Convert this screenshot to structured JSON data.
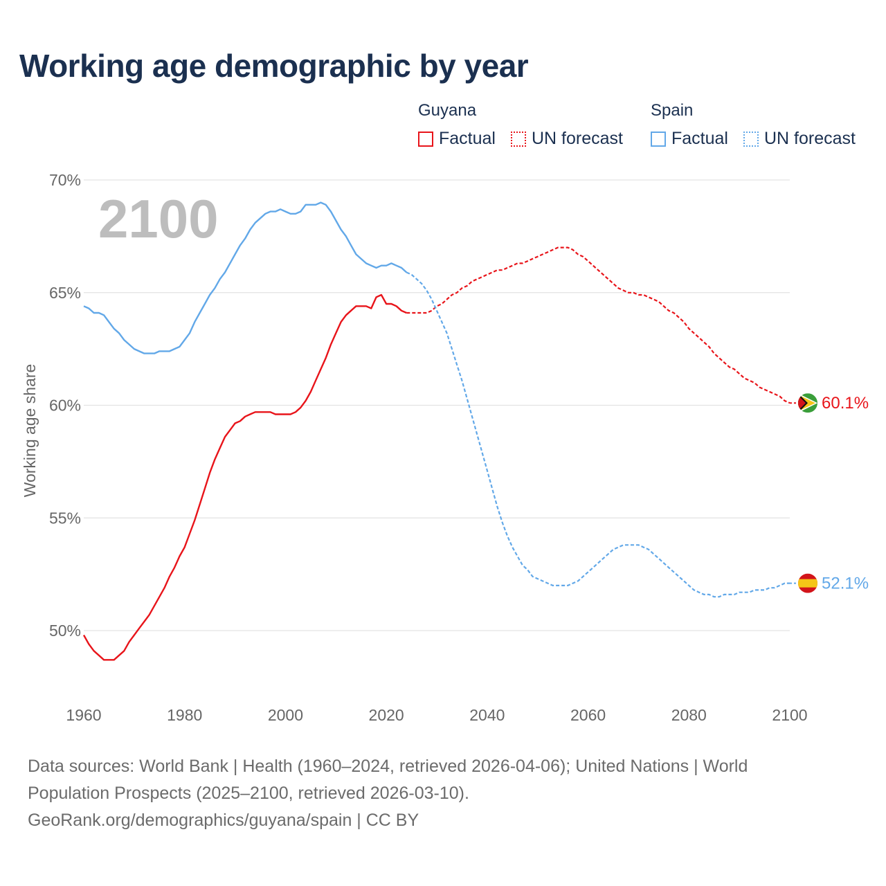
{
  "title": "Working age demographic by year",
  "legend": {
    "groups": [
      {
        "name": "Guyana",
        "color": "#e8141a",
        "factual_label": "Factual",
        "forecast_label": "UN forecast"
      },
      {
        "name": "Spain",
        "color": "#62a8e8",
        "factual_label": "Factual",
        "forecast_label": "UN forecast"
      }
    ]
  },
  "footer": {
    "line1": "Data sources: World Bank | Health (1960–2024, retrieved 2026-04-06); United Nations | World",
    "line2": "Population Prospects (2025–2100, retrieved 2026-03-10).",
    "line3": "GeoRank.org/demographics/guyana/spain | CC BY"
  },
  "chart_data": {
    "type": "line",
    "title": "Working age demographic by year",
    "year_overlay": "2100",
    "xlabel": "",
    "ylabel": "Working age share",
    "xlim": [
      1960,
      2100
    ],
    "ylim": [
      48,
      70
    ],
    "x_ticks": [
      1960,
      1980,
      2000,
      2020,
      2040,
      2060,
      2080,
      2100
    ],
    "x_tick_labels": [
      "1960",
      "1980",
      "2000",
      "2020",
      "2040",
      "2060",
      "2080",
      "2100"
    ],
    "y_ticks": [
      50,
      55,
      60,
      65,
      70
    ],
    "y_tick_labels": [
      "50%",
      "55%",
      "60%",
      "65%",
      "70%"
    ],
    "grid": true,
    "legend_position": "top-right",
    "factual_range": [
      1960,
      2024
    ],
    "forecast_range": [
      2024,
      2100
    ],
    "series": [
      {
        "name": "Guyana",
        "color": "#e8141a",
        "end_label": "60.1%",
        "points": [
          [
            1960,
            49.8
          ],
          [
            1961,
            49.4
          ],
          [
            1962,
            49.1
          ],
          [
            1963,
            48.9
          ],
          [
            1964,
            48.7
          ],
          [
            1965,
            48.7
          ],
          [
            1966,
            48.7
          ],
          [
            1967,
            48.9
          ],
          [
            1968,
            49.1
          ],
          [
            1969,
            49.5
          ],
          [
            1970,
            49.8
          ],
          [
            1971,
            50.1
          ],
          [
            1972,
            50.4
          ],
          [
            1973,
            50.7
          ],
          [
            1974,
            51.1
          ],
          [
            1975,
            51.5
          ],
          [
            1976,
            51.9
          ],
          [
            1977,
            52.4
          ],
          [
            1978,
            52.8
          ],
          [
            1979,
            53.3
          ],
          [
            1980,
            53.7
          ],
          [
            1981,
            54.3
          ],
          [
            1982,
            54.9
          ],
          [
            1983,
            55.6
          ],
          [
            1984,
            56.3
          ],
          [
            1985,
            57.0
          ],
          [
            1986,
            57.6
          ],
          [
            1987,
            58.1
          ],
          [
            1988,
            58.6
          ],
          [
            1989,
            58.9
          ],
          [
            1990,
            59.2
          ],
          [
            1991,
            59.3
          ],
          [
            1992,
            59.5
          ],
          [
            1993,
            59.6
          ],
          [
            1994,
            59.7
          ],
          [
            1995,
            59.7
          ],
          [
            1996,
            59.7
          ],
          [
            1997,
            59.7
          ],
          [
            1998,
            59.6
          ],
          [
            1999,
            59.6
          ],
          [
            2000,
            59.6
          ],
          [
            2001,
            59.6
          ],
          [
            2002,
            59.7
          ],
          [
            2003,
            59.9
          ],
          [
            2004,
            60.2
          ],
          [
            2005,
            60.6
          ],
          [
            2006,
            61.1
          ],
          [
            2007,
            61.6
          ],
          [
            2008,
            62.1
          ],
          [
            2009,
            62.7
          ],
          [
            2010,
            63.2
          ],
          [
            2011,
            63.7
          ],
          [
            2012,
            64.0
          ],
          [
            2013,
            64.2
          ],
          [
            2014,
            64.4
          ],
          [
            2015,
            64.4
          ],
          [
            2016,
            64.4
          ],
          [
            2017,
            64.3
          ],
          [
            2018,
            64.8
          ],
          [
            2019,
            64.9
          ],
          [
            2020,
            64.5
          ],
          [
            2021,
            64.5
          ],
          [
            2022,
            64.4
          ],
          [
            2023,
            64.2
          ],
          [
            2024,
            64.1
          ],
          [
            2025,
            64.1
          ],
          [
            2026,
            64.1
          ],
          [
            2027,
            64.1
          ],
          [
            2028,
            64.1
          ],
          [
            2029,
            64.2
          ],
          [
            2030,
            64.4
          ],
          [
            2031,
            64.5
          ],
          [
            2032,
            64.7
          ],
          [
            2033,
            64.9
          ],
          [
            2034,
            65.0
          ],
          [
            2035,
            65.2
          ],
          [
            2036,
            65.3
          ],
          [
            2037,
            65.5
          ],
          [
            2038,
            65.6
          ],
          [
            2039,
            65.7
          ],
          [
            2040,
            65.8
          ],
          [
            2041,
            65.9
          ],
          [
            2042,
            66.0
          ],
          [
            2043,
            66.0
          ],
          [
            2044,
            66.1
          ],
          [
            2045,
            66.2
          ],
          [
            2046,
            66.3
          ],
          [
            2047,
            66.3
          ],
          [
            2048,
            66.4
          ],
          [
            2049,
            66.5
          ],
          [
            2050,
            66.6
          ],
          [
            2051,
            66.7
          ],
          [
            2052,
            66.8
          ],
          [
            2053,
            66.9
          ],
          [
            2054,
            67.0
          ],
          [
            2055,
            67.0
          ],
          [
            2056,
            67.0
          ],
          [
            2057,
            66.9
          ],
          [
            2058,
            66.7
          ],
          [
            2059,
            66.6
          ],
          [
            2060,
            66.4
          ],
          [
            2061,
            66.2
          ],
          [
            2062,
            66.0
          ],
          [
            2063,
            65.8
          ],
          [
            2064,
            65.6
          ],
          [
            2065,
            65.4
          ],
          [
            2066,
            65.2
          ],
          [
            2067,
            65.1
          ],
          [
            2068,
            65.0
          ],
          [
            2069,
            65.0
          ],
          [
            2070,
            64.9
          ],
          [
            2071,
            64.9
          ],
          [
            2072,
            64.8
          ],
          [
            2073,
            64.7
          ],
          [
            2074,
            64.6
          ],
          [
            2075,
            64.4
          ],
          [
            2076,
            64.2
          ],
          [
            2077,
            64.1
          ],
          [
            2078,
            63.9
          ],
          [
            2079,
            63.7
          ],
          [
            2080,
            63.4
          ],
          [
            2081,
            63.2
          ],
          [
            2082,
            63.0
          ],
          [
            2083,
            62.8
          ],
          [
            2084,
            62.6
          ],
          [
            2085,
            62.3
          ],
          [
            2086,
            62.1
          ],
          [
            2087,
            61.9
          ],
          [
            2088,
            61.7
          ],
          [
            2089,
            61.6
          ],
          [
            2090,
            61.4
          ],
          [
            2091,
            61.2
          ],
          [
            2092,
            61.1
          ],
          [
            2093,
            61.0
          ],
          [
            2094,
            60.8
          ],
          [
            2095,
            60.7
          ],
          [
            2096,
            60.6
          ],
          [
            2097,
            60.5
          ],
          [
            2098,
            60.4
          ],
          [
            2099,
            60.2
          ],
          [
            2100,
            60.1
          ]
        ]
      },
      {
        "name": "Spain",
        "color": "#62a8e8",
        "end_label": "52.1%",
        "points": [
          [
            1960,
            64.4
          ],
          [
            1961,
            64.3
          ],
          [
            1962,
            64.1
          ],
          [
            1963,
            64.1
          ],
          [
            1964,
            64.0
          ],
          [
            1965,
            63.7
          ],
          [
            1966,
            63.4
          ],
          [
            1967,
            63.2
          ],
          [
            1968,
            62.9
          ],
          [
            1969,
            62.7
          ],
          [
            1970,
            62.5
          ],
          [
            1971,
            62.4
          ],
          [
            1972,
            62.3
          ],
          [
            1973,
            62.3
          ],
          [
            1974,
            62.3
          ],
          [
            1975,
            62.4
          ],
          [
            1976,
            62.4
          ],
          [
            1977,
            62.4
          ],
          [
            1978,
            62.5
          ],
          [
            1979,
            62.6
          ],
          [
            1980,
            62.9
          ],
          [
            1981,
            63.2
          ],
          [
            1982,
            63.7
          ],
          [
            1983,
            64.1
          ],
          [
            1984,
            64.5
          ],
          [
            1985,
            64.9
          ],
          [
            1986,
            65.2
          ],
          [
            1987,
            65.6
          ],
          [
            1988,
            65.9
          ],
          [
            1989,
            66.3
          ],
          [
            1990,
            66.7
          ],
          [
            1991,
            67.1
          ],
          [
            1992,
            67.4
          ],
          [
            1993,
            67.8
          ],
          [
            1994,
            68.1
          ],
          [
            1995,
            68.3
          ],
          [
            1996,
            68.5
          ],
          [
            1997,
            68.6
          ],
          [
            1998,
            68.6
          ],
          [
            1999,
            68.7
          ],
          [
            2000,
            68.6
          ],
          [
            2001,
            68.5
          ],
          [
            2002,
            68.5
          ],
          [
            2003,
            68.6
          ],
          [
            2004,
            68.9
          ],
          [
            2005,
            68.9
          ],
          [
            2006,
            68.9
          ],
          [
            2007,
            69.0
          ],
          [
            2008,
            68.9
          ],
          [
            2009,
            68.6
          ],
          [
            2010,
            68.2
          ],
          [
            2011,
            67.8
          ],
          [
            2012,
            67.5
          ],
          [
            2013,
            67.1
          ],
          [
            2014,
            66.7
          ],
          [
            2015,
            66.5
          ],
          [
            2016,
            66.3
          ],
          [
            2017,
            66.2
          ],
          [
            2018,
            66.1
          ],
          [
            2019,
            66.2
          ],
          [
            2020,
            66.2
          ],
          [
            2021,
            66.3
          ],
          [
            2022,
            66.2
          ],
          [
            2023,
            66.1
          ],
          [
            2024,
            65.9
          ],
          [
            2025,
            65.8
          ],
          [
            2026,
            65.6
          ],
          [
            2027,
            65.4
          ],
          [
            2028,
            65.1
          ],
          [
            2029,
            64.7
          ],
          [
            2030,
            64.2
          ],
          [
            2031,
            63.7
          ],
          [
            2032,
            63.2
          ],
          [
            2033,
            62.5
          ],
          [
            2034,
            61.8
          ],
          [
            2035,
            61.1
          ],
          [
            2036,
            60.3
          ],
          [
            2037,
            59.5
          ],
          [
            2038,
            58.7
          ],
          [
            2039,
            57.9
          ],
          [
            2040,
            57.1
          ],
          [
            2041,
            56.3
          ],
          [
            2042,
            55.5
          ],
          [
            2043,
            54.8
          ],
          [
            2044,
            54.2
          ],
          [
            2045,
            53.7
          ],
          [
            2046,
            53.3
          ],
          [
            2047,
            52.9
          ],
          [
            2048,
            52.7
          ],
          [
            2049,
            52.4
          ],
          [
            2050,
            52.3
          ],
          [
            2051,
            52.2
          ],
          [
            2052,
            52.1
          ],
          [
            2053,
            52.0
          ],
          [
            2054,
            52.0
          ],
          [
            2055,
            52.0
          ],
          [
            2056,
            52.0
          ],
          [
            2057,
            52.1
          ],
          [
            2058,
            52.2
          ],
          [
            2059,
            52.4
          ],
          [
            2060,
            52.6
          ],
          [
            2061,
            52.8
          ],
          [
            2062,
            53.0
          ],
          [
            2063,
            53.2
          ],
          [
            2064,
            53.4
          ],
          [
            2065,
            53.6
          ],
          [
            2066,
            53.7
          ],
          [
            2067,
            53.8
          ],
          [
            2068,
            53.8
          ],
          [
            2069,
            53.8
          ],
          [
            2070,
            53.8
          ],
          [
            2071,
            53.7
          ],
          [
            2072,
            53.6
          ],
          [
            2073,
            53.4
          ],
          [
            2074,
            53.2
          ],
          [
            2075,
            53.0
          ],
          [
            2076,
            52.8
          ],
          [
            2077,
            52.6
          ],
          [
            2078,
            52.4
          ],
          [
            2079,
            52.2
          ],
          [
            2080,
            52.0
          ],
          [
            2081,
            51.8
          ],
          [
            2082,
            51.7
          ],
          [
            2083,
            51.6
          ],
          [
            2084,
            51.6
          ],
          [
            2085,
            51.5
          ],
          [
            2086,
            51.5
          ],
          [
            2087,
            51.6
          ],
          [
            2088,
            51.6
          ],
          [
            2089,
            51.6
          ],
          [
            2090,
            51.7
          ],
          [
            2091,
            51.7
          ],
          [
            2092,
            51.7
          ],
          [
            2093,
            51.8
          ],
          [
            2094,
            51.8
          ],
          [
            2095,
            51.8
          ],
          [
            2096,
            51.9
          ],
          [
            2097,
            51.9
          ],
          [
            2098,
            52.0
          ],
          [
            2099,
            52.1
          ],
          [
            2100,
            52.1
          ]
        ]
      }
    ]
  }
}
